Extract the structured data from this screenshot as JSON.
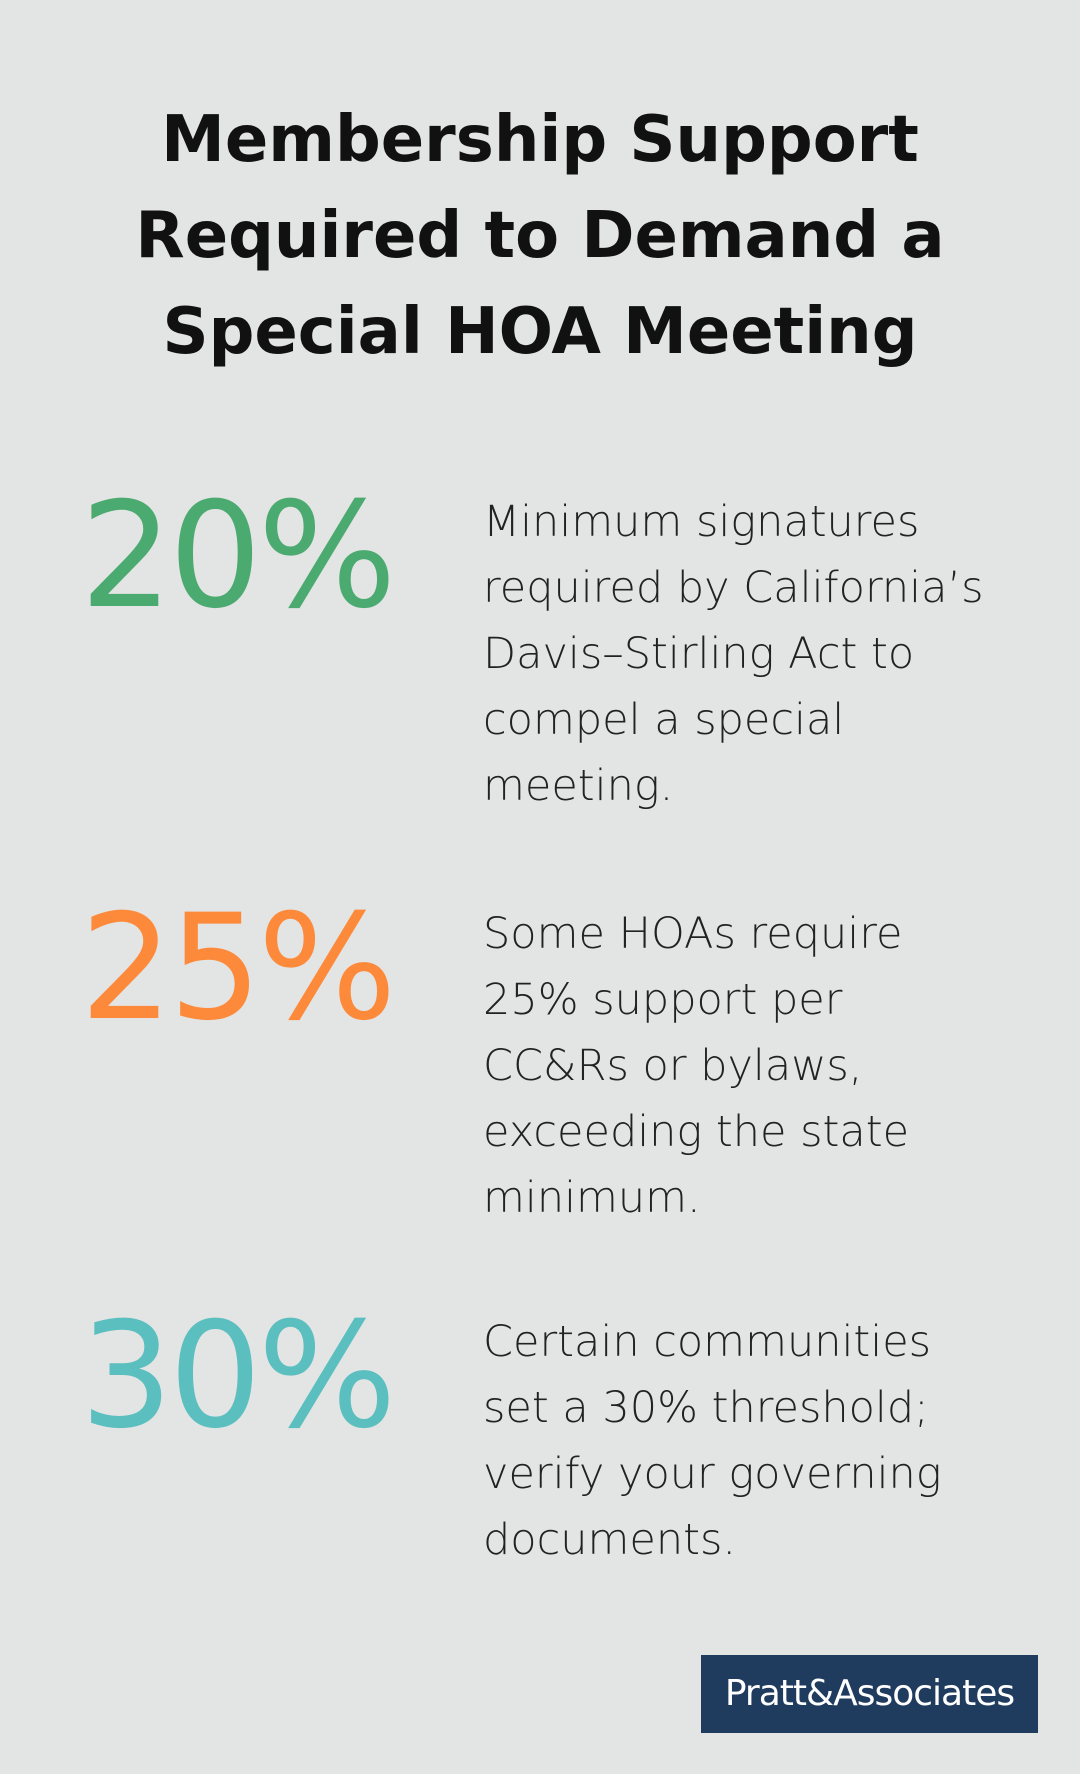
{
  "header": {
    "title": "Membership Support Required to Demand a Special HOA Meeting"
  },
  "stats": [
    {
      "value": "20%",
      "color": "#4aaa6f",
      "description": "Minimum signatures required by California’s Davis–Stirling Act to compel a special meeting."
    },
    {
      "value": "25%",
      "color": "#fd8a3a",
      "description": "Some HOAs require 25% support per CC&Rs or bylaws, exceeding the state minimum."
    },
    {
      "value": "30%",
      "color": "#5bbfbf",
      "description": "Certain communities set a 30% threshold; verify your governing documents."
    }
  ],
  "footer": {
    "logo": "Pratt&Associates"
  }
}
